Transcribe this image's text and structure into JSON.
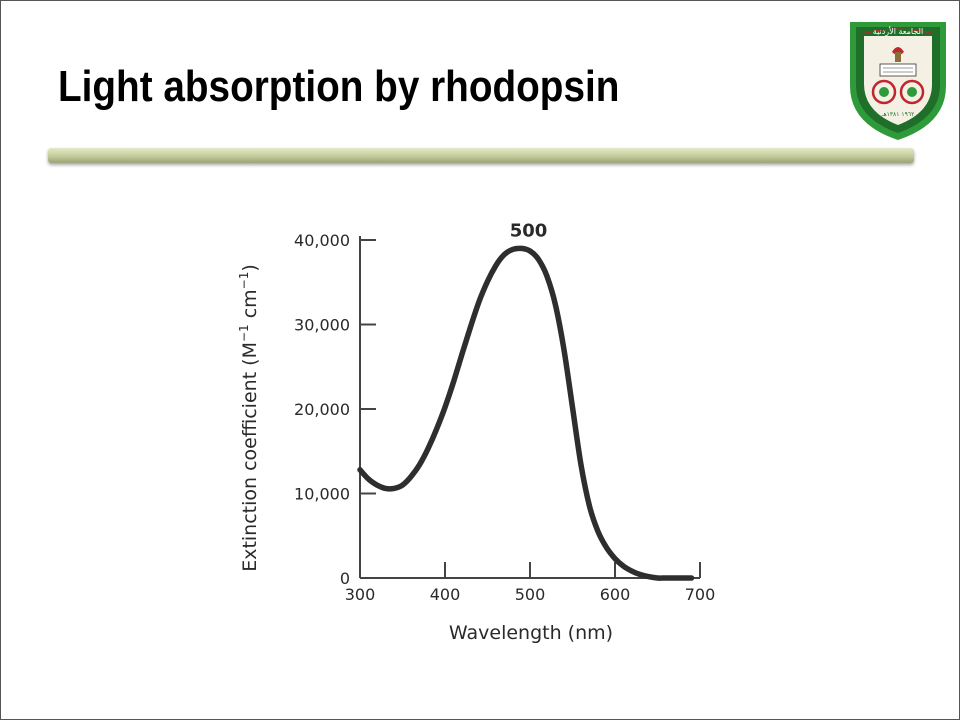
{
  "slide": {
    "title": "Light absorption by rhodopsin"
  },
  "logo": {
    "icon": "university-seal-icon",
    "text_top": "الجامعة الأردنية",
    "text_bottom": "١٩٦٢ ١٣٨١هـ",
    "colors": {
      "outer": "#2e9a3a",
      "inner": "#f4f1e4",
      "accent": "#c0262d"
    }
  },
  "colors": {
    "bar": "#c3cb9b",
    "curve": "#2e2e2e"
  },
  "chart_data": {
    "type": "line",
    "xlabel": "Wavelength (nm)",
    "ylabel_parts": [
      "Extinction coefficient (M",
      "−1",
      " cm",
      "−1",
      ")"
    ],
    "xlim": [
      300,
      700
    ],
    "ylim": [
      0,
      40000
    ],
    "x_ticks": [
      300,
      400,
      500,
      600,
      700
    ],
    "x_tick_labels": [
      "300",
      "400",
      "500",
      "600",
      "700"
    ],
    "y_ticks": [
      0,
      10000,
      20000,
      30000,
      40000
    ],
    "y_tick_labels": [
      "0",
      "10,000",
      "20,000",
      "30,000",
      "40,000"
    ],
    "peak_label": "500",
    "peak_label_x": 490,
    "grid": false,
    "series": [
      {
        "x": [
          300,
          310,
          320,
          330,
          340,
          350,
          360,
          370,
          380,
          390,
          400,
          410,
          420,
          430,
          440,
          450,
          460,
          470,
          480,
          490,
          500,
          510,
          520,
          530,
          540,
          550,
          560,
          570,
          580,
          590,
          600,
          610,
          620,
          630,
          640,
          650,
          660,
          670,
          680,
          690
        ],
        "y": [
          12800,
          11700,
          11000,
          10600,
          10600,
          11000,
          12000,
          13400,
          15300,
          17600,
          20200,
          23200,
          26500,
          29700,
          32700,
          35100,
          37000,
          38300,
          38900,
          39000,
          38700,
          37700,
          35700,
          32300,
          27000,
          20200,
          13400,
          8500,
          5500,
          3600,
          2300,
          1400,
          800,
          400,
          150,
          0,
          0,
          0,
          0,
          0
        ]
      }
    ]
  }
}
